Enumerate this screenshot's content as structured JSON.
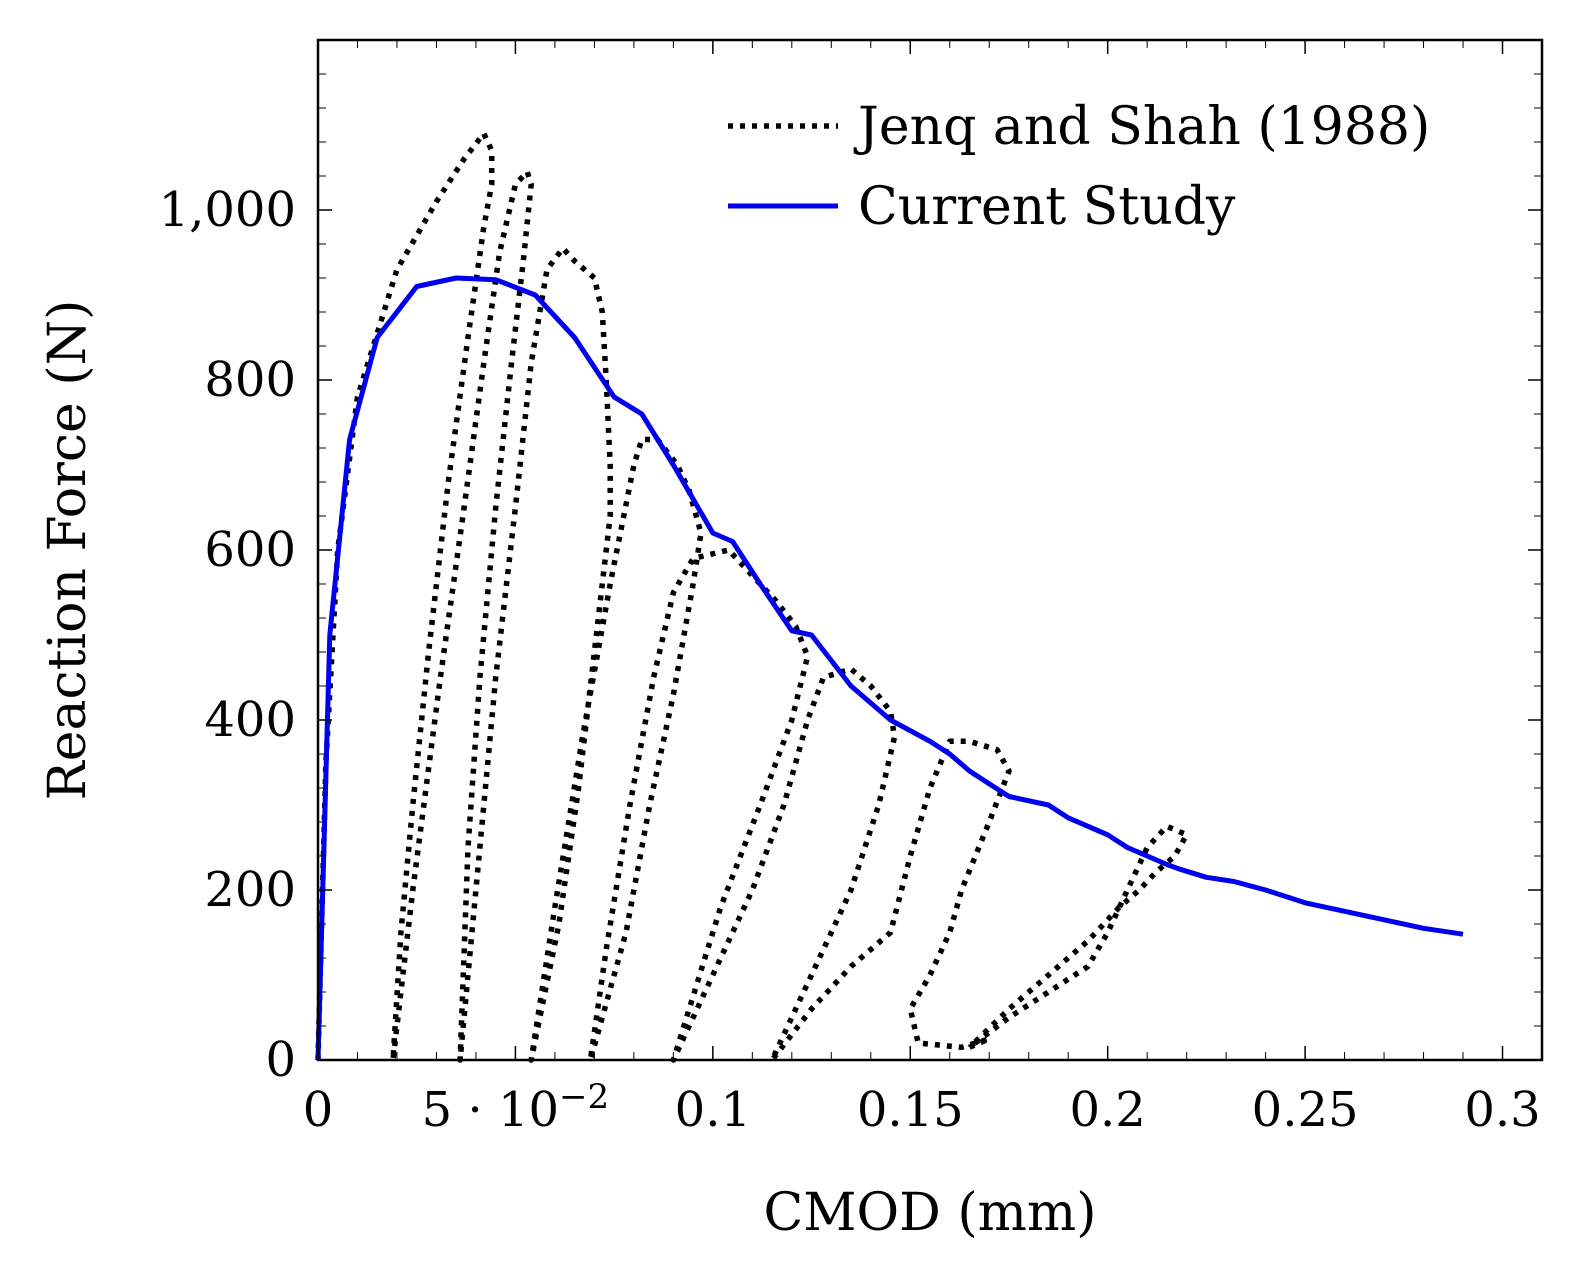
{
  "chart_data": {
    "type": "line",
    "xlabel": "CMOD (mm)",
    "ylabel": "Reaction Force (N)",
    "xlim": [
      0,
      0.31
    ],
    "ylim": [
      0,
      1200
    ],
    "x_ticks": [
      {
        "value": 0,
        "label": "0"
      },
      {
        "value": 0.05,
        "label": "5 · 10",
        "sup": "−2"
      },
      {
        "value": 0.1,
        "label": "0.1"
      },
      {
        "value": 0.15,
        "label": "0.15"
      },
      {
        "value": 0.2,
        "label": "0.2"
      },
      {
        "value": 0.25,
        "label": "0.25"
      },
      {
        "value": 0.3,
        "label": "0.3"
      }
    ],
    "y_ticks": [
      {
        "value": 0,
        "label": "0"
      },
      {
        "value": 200,
        "label": "200"
      },
      {
        "value": 400,
        "label": "400"
      },
      {
        "value": 600,
        "label": "600"
      },
      {
        "value": 800,
        "label": "800"
      },
      {
        "value": 1000,
        "label": "1,000"
      }
    ],
    "grid": false,
    "legend_position": "top-right",
    "series": [
      {
        "name": "Jenq and Shah (1988)",
        "style": "dotted",
        "color": "#000000",
        "points": [
          [
            0,
            0
          ],
          [
            0.002,
            350
          ],
          [
            0.005,
            600
          ],
          [
            0.01,
            780
          ],
          [
            0.02,
            930
          ],
          [
            0.03,
            1010
          ],
          [
            0.037,
            1060
          ],
          [
            0.042,
            1090
          ],
          [
            0.044,
            1070
          ],
          [
            0.044,
            1030
          ],
          [
            0.042,
            980
          ],
          [
            0.038,
            850
          ],
          [
            0.033,
            680
          ],
          [
            0.028,
            480
          ],
          [
            0.024,
            300
          ],
          [
            0.021,
            150
          ],
          [
            0.019,
            0
          ],
          [
            0.019,
            0
          ],
          [
            0.024,
            200
          ],
          [
            0.031,
            450
          ],
          [
            0.037,
            650
          ],
          [
            0.042,
            820
          ],
          [
            0.046,
            950
          ],
          [
            0.05,
            1030
          ],
          [
            0.053,
            1045
          ],
          [
            0.054,
            1030
          ],
          [
            0.052,
            940
          ],
          [
            0.049,
            820
          ],
          [
            0.045,
            650
          ],
          [
            0.041,
            450
          ],
          [
            0.038,
            250
          ],
          [
            0.036,
            0
          ],
          [
            0.036,
            0
          ],
          [
            0.04,
            200
          ],
          [
            0.045,
            450
          ],
          [
            0.05,
            650
          ],
          [
            0.054,
            820
          ],
          [
            0.058,
            930
          ],
          [
            0.062,
            955
          ],
          [
            0.065,
            940
          ],
          [
            0.07,
            920
          ],
          [
            0.072,
            880
          ],
          [
            0.073,
            800
          ],
          [
            0.074,
            700
          ],
          [
            0.074,
            640
          ],
          [
            0.071,
            520
          ],
          [
            0.066,
            320
          ],
          [
            0.061,
            160
          ],
          [
            0.054,
            0
          ],
          [
            0.054,
            0
          ],
          [
            0.06,
            180
          ],
          [
            0.067,
            380
          ],
          [
            0.074,
            560
          ],
          [
            0.08,
            700
          ],
          [
            0.082,
            730
          ],
          [
            0.086,
            730
          ],
          [
            0.091,
            700
          ],
          [
            0.094,
            670
          ],
          [
            0.097,
            620
          ],
          [
            0.095,
            560
          ],
          [
            0.09,
            430
          ],
          [
            0.084,
            300
          ],
          [
            0.078,
            150
          ],
          [
            0.069,
            0
          ],
          [
            0.069,
            0
          ],
          [
            0.073,
            130
          ],
          [
            0.079,
            300
          ],
          [
            0.085,
            450
          ],
          [
            0.09,
            550
          ],
          [
            0.095,
            590
          ],
          [
            0.104,
            600
          ],
          [
            0.11,
            570
          ],
          [
            0.116,
            540
          ],
          [
            0.121,
            510
          ],
          [
            0.124,
            475
          ],
          [
            0.12,
            400
          ],
          [
            0.112,
            300
          ],
          [
            0.102,
            180
          ],
          [
            0.09,
            0
          ],
          [
            0.09,
            0
          ],
          [
            0.1,
            100
          ],
          [
            0.11,
            200
          ],
          [
            0.118,
            300
          ],
          [
            0.124,
            400
          ],
          [
            0.128,
            450
          ],
          [
            0.135,
            460
          ],
          [
            0.14,
            440
          ],
          [
            0.145,
            410
          ],
          [
            0.146,
            380
          ],
          [
            0.142,
            300
          ],
          [
            0.135,
            200
          ],
          [
            0.125,
            100
          ],
          [
            0.115,
            0
          ],
          [
            0.115,
            0
          ],
          [
            0.125,
            60
          ],
          [
            0.135,
            110
          ],
          [
            0.145,
            150
          ],
          [
            0.15,
            240
          ],
          [
            0.155,
            320
          ],
          [
            0.16,
            375
          ],
          [
            0.165,
            375
          ],
          [
            0.172,
            365
          ],
          [
            0.175,
            340
          ],
          [
            0.17,
            280
          ],
          [
            0.163,
            200
          ],
          [
            0.16,
            150
          ],
          [
            0.155,
            100
          ],
          [
            0.15,
            60
          ],
          [
            0.152,
            20
          ],
          [
            0.163,
            15
          ],
          [
            0.17,
            25
          ],
          [
            0.165,
            15
          ],
          [
            0.175,
            50
          ],
          [
            0.185,
            80
          ],
          [
            0.195,
            110
          ],
          [
            0.2,
            150
          ],
          [
            0.205,
            200
          ],
          [
            0.21,
            250
          ],
          [
            0.215,
            275
          ],
          [
            0.22,
            265
          ],
          [
            0.217,
            240
          ],
          [
            0.212,
            220
          ],
          [
            0.208,
            200
          ],
          [
            0.203,
            180
          ],
          [
            0.195,
            140
          ],
          [
            0.185,
            100
          ],
          [
            0.175,
            60
          ],
          [
            0.165,
            15
          ]
        ]
      },
      {
        "name": "Current Study",
        "style": "solid",
        "color": "#0000ee",
        "points": [
          [
            0,
            0
          ],
          [
            0.003,
            500
          ],
          [
            0.008,
            730
          ],
          [
            0.015,
            850
          ],
          [
            0.025,
            910
          ],
          [
            0.035,
            920
          ],
          [
            0.045,
            918
          ],
          [
            0.055,
            900
          ],
          [
            0.065,
            850
          ],
          [
            0.075,
            780
          ],
          [
            0.082,
            760
          ],
          [
            0.09,
            700
          ],
          [
            0.1,
            620
          ],
          [
            0.105,
            610
          ],
          [
            0.112,
            560
          ],
          [
            0.12,
            505
          ],
          [
            0.125,
            500
          ],
          [
            0.135,
            440
          ],
          [
            0.145,
            400
          ],
          [
            0.155,
            375
          ],
          [
            0.16,
            360
          ],
          [
            0.165,
            340
          ],
          [
            0.17,
            325
          ],
          [
            0.175,
            310
          ],
          [
            0.185,
            300
          ],
          [
            0.19,
            285
          ],
          [
            0.2,
            265
          ],
          [
            0.205,
            250
          ],
          [
            0.21,
            240
          ],
          [
            0.215,
            230
          ],
          [
            0.218,
            225
          ],
          [
            0.225,
            215
          ],
          [
            0.232,
            210
          ],
          [
            0.24,
            200
          ],
          [
            0.25,
            185
          ],
          [
            0.26,
            175
          ],
          [
            0.27,
            165
          ],
          [
            0.28,
            155
          ],
          [
            0.29,
            148
          ]
        ]
      }
    ]
  }
}
